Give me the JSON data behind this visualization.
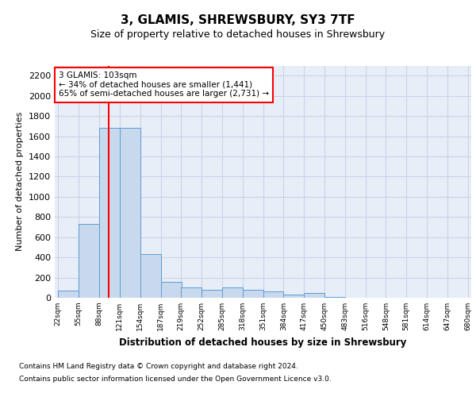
{
  "title": "3, GLAMIS, SHREWSBURY, SY3 7TF",
  "subtitle": "Size of property relative to detached houses in Shrewsbury",
  "xlabel": "Distribution of detached houses by size in Shrewsbury",
  "ylabel": "Number of detached properties",
  "bin_edges": [
    22,
    55,
    88,
    121,
    154,
    187,
    219,
    252,
    285,
    318,
    351,
    384,
    417,
    450,
    483,
    516,
    548,
    581,
    614,
    647,
    680
  ],
  "bar_heights": [
    70,
    730,
    1680,
    1680,
    430,
    155,
    100,
    75,
    100,
    75,
    65,
    30,
    50,
    10,
    3,
    1,
    0,
    0,
    0,
    0
  ],
  "bar_color": "#c9d9ed",
  "bar_edge_color": "#5b9bd5",
  "grid_color": "#c8d4e8",
  "background_color": "#e8eef7",
  "red_line_x": 103,
  "annotation_text": "3 GLAMIS: 103sqm\n← 34% of detached houses are smaller (1,441)\n65% of semi-detached houses are larger (2,731) →",
  "annotation_box_color": "white",
  "annotation_edge_color": "red",
  "ylim": [
    0,
    2300
  ],
  "yticks": [
    0,
    200,
    400,
    600,
    800,
    1000,
    1200,
    1400,
    1600,
    1800,
    2000,
    2200
  ],
  "footer_line1": "Contains HM Land Registry data © Crown copyright and database right 2024.",
  "footer_line2": "Contains public sector information licensed under the Open Government Licence v3.0."
}
